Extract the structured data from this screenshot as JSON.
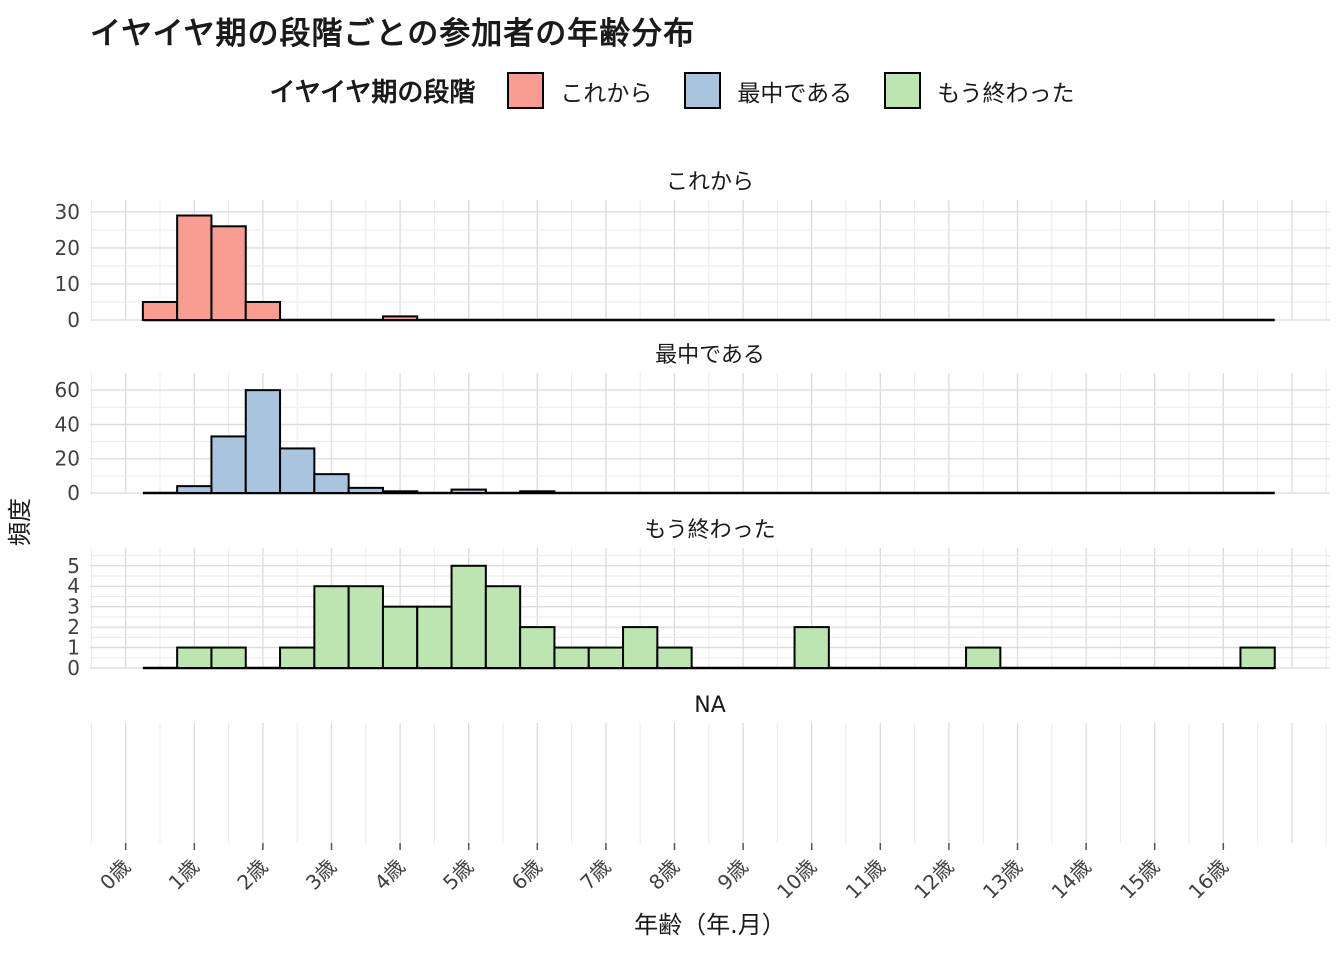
{
  "title": "イヤイヤ期の段階ごとの参加者の年齢分布",
  "legend": {
    "title": "イヤイヤ期の段階",
    "items": [
      {
        "label": "これから",
        "color": "#F89C94"
      },
      {
        "label": "最中である",
        "color": "#A9C4DF"
      },
      {
        "label": "もう終わった",
        "color": "#BDE5B2"
      }
    ]
  },
  "chart_data": {
    "type": "bar",
    "subtype": "faceted-histogram",
    "title": "イヤイヤ期の段階ごとの参加者の年齢分布",
    "xlabel": "年齢（年.月）",
    "ylabel": "頻度",
    "binwidth": 0.5,
    "grid": true,
    "legend_position": "top",
    "background": "#FFFFFF",
    "bar_outline": "#000000",
    "x_range": [
      -0.52,
      17.56
    ],
    "x_tick_years": [
      0,
      1,
      2,
      3,
      4,
      5,
      6,
      7,
      8,
      9,
      10,
      11,
      12,
      13,
      14,
      15,
      16
    ],
    "x_tick_labels": [
      "0歳",
      "1歳",
      "2歳",
      "3歳",
      "4歳",
      "5歳",
      "6歳",
      "7歳",
      "8歳",
      "9歳",
      "10歳",
      "11歳",
      "12歳",
      "13歳",
      "14歳",
      "15歳",
      "16歳"
    ],
    "facets": [
      {
        "label": "これから",
        "color": "#F89C94",
        "y_ticks": [
          0,
          10,
          20,
          30
        ],
        "y_max": 33.3,
        "bins": [
          [
            0.5,
            5
          ],
          [
            1,
            29
          ],
          [
            1.5,
            26
          ],
          [
            2,
            5
          ],
          [
            4,
            1
          ]
        ]
      },
      {
        "label": "最中である",
        "color": "#A9C4DF",
        "y_ticks": [
          0,
          20,
          40,
          60
        ],
        "y_max": 70,
        "bins": [
          [
            1,
            4
          ],
          [
            1.5,
            33
          ],
          [
            2,
            60
          ],
          [
            2.5,
            26
          ],
          [
            3,
            11
          ],
          [
            3.5,
            3
          ],
          [
            4,
            1
          ],
          [
            5,
            2
          ],
          [
            6,
            1
          ]
        ]
      },
      {
        "label": "もう終わった",
        "color": "#BDE5B2",
        "y_ticks": [
          0,
          1,
          2,
          3,
          4,
          5
        ],
        "y_max": 5.87,
        "bins": [
          [
            1,
            1
          ],
          [
            1.5,
            1
          ],
          [
            2.5,
            1
          ],
          [
            3,
            4
          ],
          [
            3.5,
            4
          ],
          [
            4,
            3
          ],
          [
            4.5,
            3
          ],
          [
            5,
            5
          ],
          [
            5.5,
            4
          ],
          [
            6,
            2
          ],
          [
            6.5,
            1
          ],
          [
            7,
            1
          ],
          [
            7.5,
            2
          ],
          [
            8,
            1
          ],
          [
            10,
            2
          ],
          [
            12.5,
            1
          ],
          [
            16.5,
            1
          ]
        ]
      },
      {
        "label": "NA",
        "color": null,
        "y_ticks": [],
        "y_max": null,
        "bins": []
      }
    ]
  }
}
